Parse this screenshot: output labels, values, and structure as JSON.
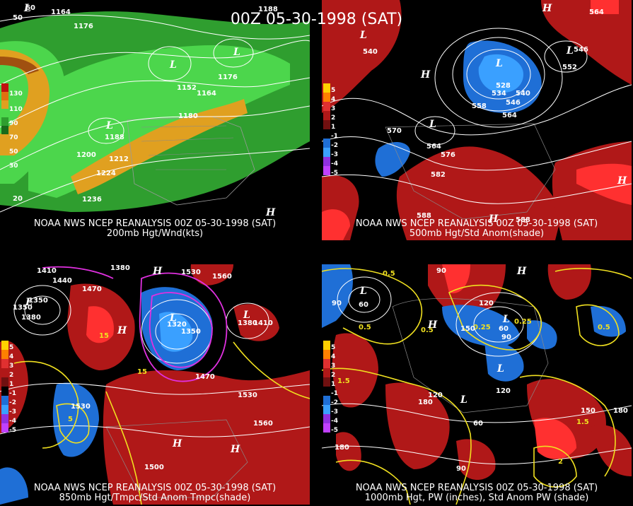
{
  "title": "00Z 05-30-1998 (SAT)",
  "colors": {
    "background": "#000000",
    "contour": "#ffffff",
    "warm_anom": "#b01818",
    "strong_warm": "#ff3030",
    "cold_anom": "#1f6fd6",
    "strong_cold": "#3aa0ff",
    "wind_light": "#2f9e2f",
    "wind_medium": "#4cd64c",
    "wind_high": "#e0a020",
    "yellow_line": "#f0e020",
    "magenta_line": "#e030e0"
  },
  "panels": [
    {
      "id": "p200",
      "caption_line1": "NOAA NWS NCEP REANALYSIS 00Z 05-30-1998 (SAT)",
      "caption_line2": "200mb Hgt/Wnd(kts)",
      "legend": [
        "130",
        "110",
        "90",
        "70",
        "50",
        "30"
      ],
      "labels": [
        {
          "t": "1164"
        },
        {
          "t": "1176"
        },
        {
          "t": "1188"
        },
        {
          "t": "1152"
        },
        {
          "t": "1164"
        },
        {
          "t": "1176"
        },
        {
          "t": "1180"
        },
        {
          "t": "1188"
        },
        {
          "t": "1200"
        },
        {
          "t": "1212"
        },
        {
          "t": "1224"
        },
        {
          "t": "1236"
        },
        {
          "t": "20"
        },
        {
          "t": "50"
        },
        {
          "t": "60"
        }
      ],
      "symbols": [
        "L",
        "L",
        "L",
        "L",
        "H"
      ]
    },
    {
      "id": "p500",
      "caption_line1": "NOAA NWS NCEP REANALYSIS 00Z 05-30-1998 (SAT)",
      "caption_line2": "500mb Hgt/Std Anom(shade)",
      "legend": [
        "5",
        "4",
        "3",
        "2",
        "1",
        "-1",
        "-2",
        "-3",
        "-4",
        "-5"
      ],
      "labels": [
        {
          "t": "540"
        },
        {
          "t": "528"
        },
        {
          "t": "534"
        },
        {
          "t": "540"
        },
        {
          "t": "546"
        },
        {
          "t": "552"
        },
        {
          "t": "546"
        },
        {
          "t": "558"
        },
        {
          "t": "564"
        },
        {
          "t": "570"
        },
        {
          "t": "564"
        },
        {
          "t": "576"
        },
        {
          "t": "582"
        },
        {
          "t": "588"
        },
        {
          "t": "588"
        },
        {
          "t": "564"
        }
      ],
      "symbols": [
        "L",
        "L",
        "L",
        "L",
        "H",
        "H",
        "H",
        "H"
      ]
    },
    {
      "id": "p850",
      "caption_line1": "NOAA NWS NCEP REANALYSIS 00Z 05-30-1998 (SAT)",
      "caption_line2": "850mb Hgt/Tmpc/Std Anom Tmpc(shade)",
      "legend": [
        "5",
        "4",
        "3",
        "2",
        "1",
        "-1",
        "-2",
        "-3",
        "-4",
        "-5"
      ],
      "labels": [
        {
          "t": "1410"
        },
        {
          "t": "1440"
        },
        {
          "t": "1470"
        },
        {
          "t": "1380"
        },
        {
          "t": "1350"
        },
        {
          "t": "1320"
        },
        {
          "t": "1350"
        },
        {
          "t": "1380"
        },
        {
          "t": "1410"
        },
        {
          "t": "1530"
        },
        {
          "t": "1560"
        },
        {
          "t": "1530"
        },
        {
          "t": "1500"
        },
        {
          "t": "1530"
        },
        {
          "t": "1560"
        },
        {
          "t": "1470"
        },
        {
          "t": "15"
        },
        {
          "t": "15"
        },
        {
          "t": "5"
        },
        {
          "t": "1380"
        },
        {
          "t": "1350"
        }
      ],
      "symbols": [
        "L",
        "L",
        "L",
        "H",
        "H",
        "H",
        "H"
      ]
    },
    {
      "id": "p1000",
      "caption_line1": "NOAA NWS NCEP REANALYSIS 00Z 05-30-1998 (SAT)",
      "caption_line2": "1000mb Hgt, PW (inches), Std Anom PW (shade)",
      "legend": [
        "5",
        "4",
        "3",
        "2",
        "1",
        "-1",
        "-2",
        "-3",
        "-4",
        "-5"
      ],
      "labels": [
        {
          "t": "60"
        },
        {
          "t": "90"
        },
        {
          "t": "90"
        },
        {
          "t": "120"
        },
        {
          "t": "0.5"
        },
        {
          "t": "0.5"
        },
        {
          "t": "0.25"
        },
        {
          "t": "0.25"
        },
        {
          "t": "60"
        },
        {
          "t": "90"
        },
        {
          "t": "120"
        },
        {
          "t": "150"
        },
        {
          "t": "0.5"
        },
        {
          "t": "1.5"
        },
        {
          "t": "180"
        },
        {
          "t": "120"
        },
        {
          "t": "150"
        },
        {
          "t": "180"
        },
        {
          "t": "1.5"
        },
        {
          "t": "0.5"
        },
        {
          "t": "90"
        },
        {
          "t": "60"
        },
        {
          "t": "180"
        },
        {
          "t": "2"
        }
      ],
      "symbols": [
        "L",
        "L",
        "L",
        "L",
        "H",
        "H"
      ]
    }
  ]
}
